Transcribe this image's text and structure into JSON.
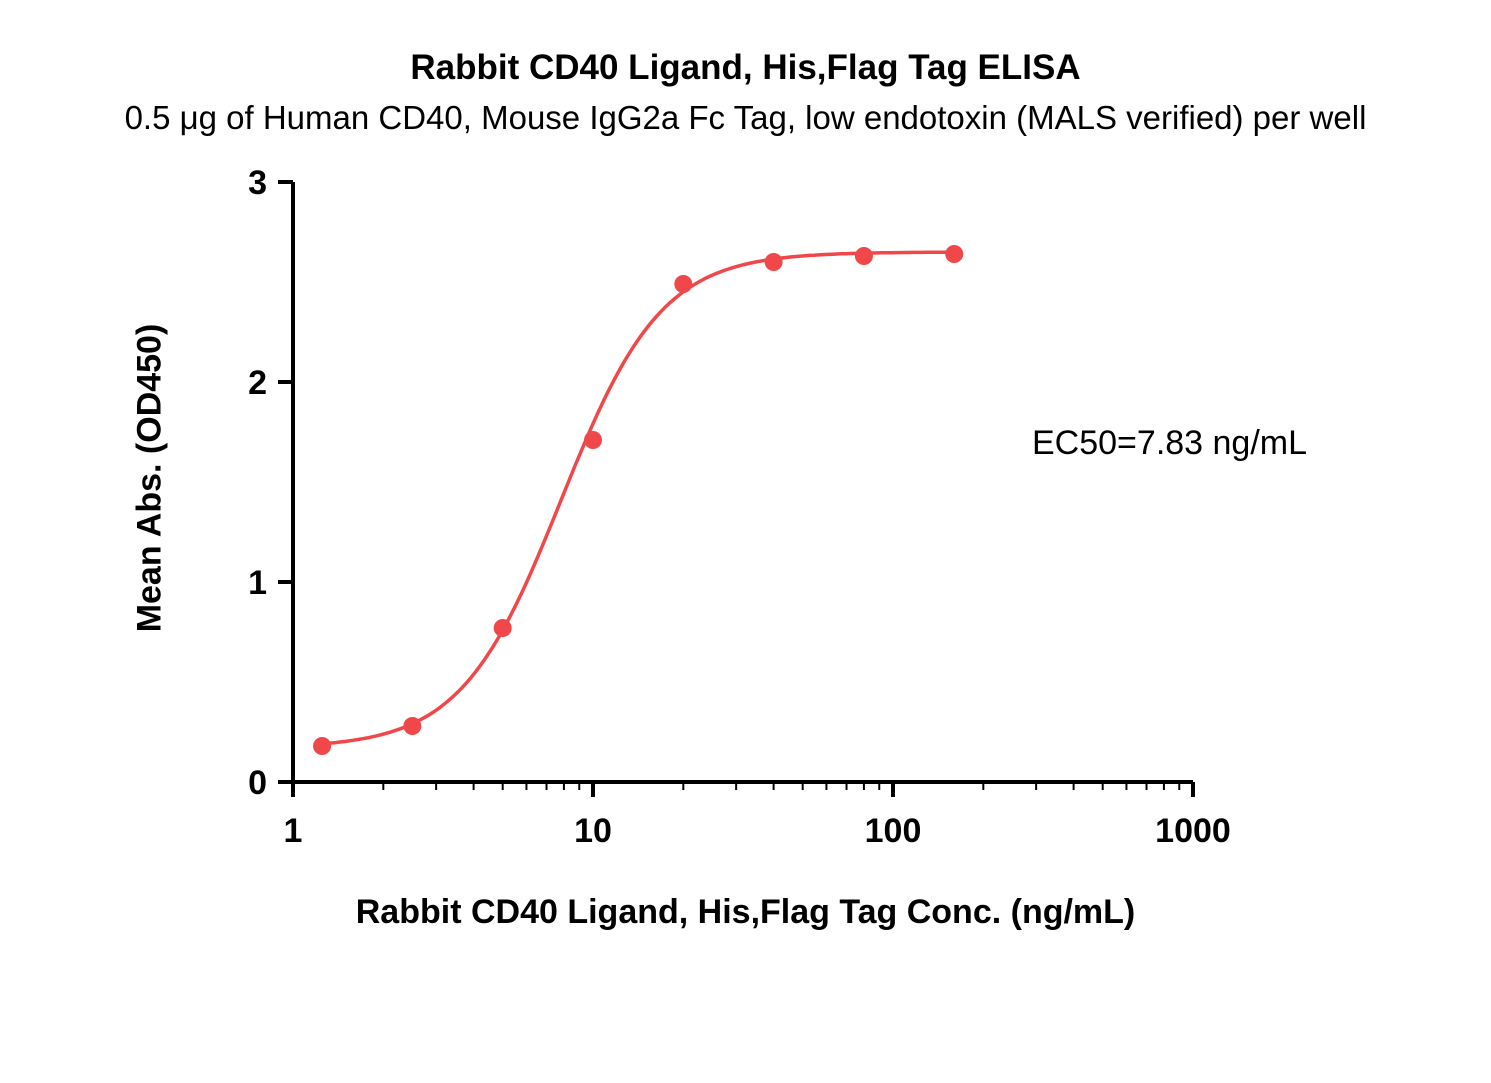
{
  "chart_data": {
    "type": "scatter",
    "title": "Rabbit CD40 Ligand, His,Flag Tag ELISA",
    "subtitle": "0.5 μg of Human CD40, Mouse IgG2a Fc Tag, low endotoxin (MALS verified) per well",
    "xlabel": "Rabbit CD40 Ligand, His,Flag Tag Conc. (ng/mL)",
    "ylabel": "Mean Abs. (OD450)",
    "annotation": "EC50=7.83 ng/mL",
    "x_scale": "log10",
    "xlim": [
      1,
      1000
    ],
    "ylim": [
      0,
      3
    ],
    "x_ticks": [
      1,
      10,
      100,
      1000
    ],
    "x_tick_labels": [
      "1",
      "10",
      "100",
      "1000"
    ],
    "y_ticks": [
      0,
      1,
      2,
      3
    ],
    "y_tick_labels": [
      "0",
      "1",
      "2",
      "3"
    ],
    "grid": false,
    "legend": "none",
    "series": [
      {
        "name": "Rabbit CD40 Ligand, His,Flag Tag",
        "x": [
          1.25,
          2.5,
          5,
          10,
          20,
          40,
          80,
          160
        ],
        "y": [
          0.18,
          0.28,
          0.77,
          1.71,
          2.49,
          2.6,
          2.63,
          2.64
        ],
        "marker": "circle",
        "fit_curve": {
          "model": "4PL",
          "ec50": 7.83,
          "bottom": 0.17,
          "top": 2.65,
          "hill": 2.6
        }
      }
    ]
  },
  "colors": {
    "accent_red": "#F0484A",
    "axis_black": "#000000",
    "background": "#FFFFFF"
  }
}
